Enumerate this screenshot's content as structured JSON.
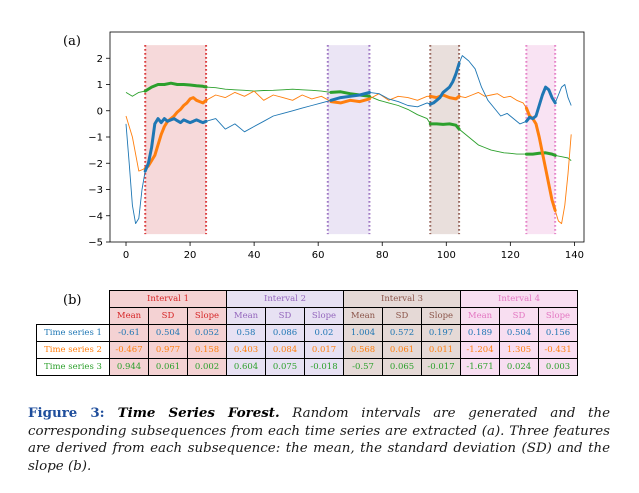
{
  "panel_a_label": "(a)",
  "panel_b_label": "(b)",
  "colors": {
    "series1": "#1f77b4",
    "series2": "#ff7f0e",
    "series3": "#2ca02c",
    "interval1_fill": "#f4d2d3",
    "interval1_line": "#d62728",
    "interval2_fill": "#e7e1f3",
    "interval2_line": "#9467bd",
    "interval3_fill": "#e5d9d6",
    "interval3_line": "#8c564b",
    "interval4_fill": "#f8def1",
    "interval4_line": "#e377c2"
  },
  "chart_data": {
    "type": "line",
    "xlim": [
      -5,
      143
    ],
    "ylim": [
      -5,
      3
    ],
    "x_ticks": [
      0,
      20,
      40,
      60,
      80,
      100,
      120,
      140
    ],
    "y_ticks": [
      2,
      1,
      0,
      -1,
      -2,
      -3,
      -4,
      -5
    ],
    "y_tick_labels": [
      "2",
      "1",
      "0",
      "−1",
      "−2",
      "−3",
      "−4",
      "−5"
    ],
    "intervals": [
      {
        "start": 6,
        "end": 25
      },
      {
        "start": 63,
        "end": 76
      },
      {
        "start": 95,
        "end": 104
      },
      {
        "start": 125,
        "end": 134
      }
    ],
    "series": [
      {
        "x": [
          0,
          1,
          2,
          3,
          4,
          5,
          6,
          7,
          8,
          9,
          10,
          11,
          12,
          13,
          14,
          15,
          16,
          17,
          18,
          19,
          20,
          21,
          22,
          23,
          24,
          25,
          28,
          31,
          34,
          37,
          40,
          43,
          46,
          49,
          52,
          55,
          58,
          61,
          64,
          67,
          70,
          73,
          76,
          79,
          82,
          85,
          88,
          91,
          94,
          95,
          96,
          97,
          98,
          99,
          100,
          101,
          102,
          103,
          104,
          105,
          107,
          109,
          111,
          113,
          115,
          117,
          119,
          121,
          123,
          125,
          126,
          127,
          128,
          129,
          130,
          131,
          132,
          133,
          134,
          135,
          136,
          137,
          138,
          139
        ],
        "y": [
          -0.5,
          -2.0,
          -3.6,
          -4.3,
          -4.1,
          -3.0,
          -2.3,
          -2.0,
          -1.4,
          -0.5,
          -0.3,
          -0.45,
          -0.3,
          -0.4,
          -0.35,
          -0.3,
          -0.38,
          -0.45,
          -0.35,
          -0.4,
          -0.45,
          -0.4,
          -0.35,
          -0.4,
          -0.45,
          -0.4,
          -0.3,
          -0.7,
          -0.5,
          -0.8,
          -0.6,
          -0.4,
          -0.2,
          -0.1,
          0.0,
          0.1,
          0.2,
          0.3,
          0.4,
          0.5,
          0.55,
          0.6,
          0.7,
          0.65,
          0.45,
          0.35,
          0.2,
          0.15,
          0.3,
          0.25,
          0.3,
          0.4,
          0.5,
          0.7,
          0.8,
          0.9,
          1.1,
          1.4,
          1.8,
          2.1,
          1.9,
          1.6,
          0.9,
          0.4,
          0.1,
          -0.2,
          -0.1,
          -0.3,
          -0.5,
          -0.4,
          -0.25,
          -0.3,
          -0.2,
          0.2,
          0.6,
          0.9,
          0.8,
          0.5,
          0.3,
          0.6,
          0.9,
          1.0,
          0.5,
          0.2
        ]
      },
      {
        "x": [
          0,
          2,
          4,
          6,
          7,
          8,
          9,
          10,
          11,
          12,
          13,
          14,
          15,
          16,
          17,
          18,
          19,
          20,
          21,
          22,
          23,
          24,
          25,
          28,
          31,
          34,
          37,
          40,
          43,
          46,
          49,
          52,
          55,
          58,
          61,
          64,
          67,
          70,
          73,
          76,
          79,
          82,
          85,
          88,
          91,
          94,
          95,
          97,
          99,
          101,
          103,
          104,
          106,
          108,
          110,
          112,
          114,
          116,
          118,
          120,
          122,
          124,
          125,
          126,
          127,
          128,
          129,
          130,
          131,
          132,
          133,
          134,
          135,
          136,
          137,
          138,
          139
        ],
        "y": [
          -0.2,
          -1.0,
          -2.3,
          -2.2,
          -2.1,
          -1.9,
          -1.7,
          -1.3,
          -0.9,
          -0.6,
          -0.4,
          -0.3,
          -0.2,
          -0.05,
          0.05,
          0.2,
          0.3,
          0.45,
          0.5,
          0.4,
          0.35,
          0.3,
          0.4,
          0.6,
          0.5,
          0.7,
          0.55,
          0.75,
          0.4,
          0.6,
          0.5,
          0.4,
          0.6,
          0.45,
          0.55,
          0.35,
          0.3,
          0.4,
          0.35,
          0.45,
          0.65,
          0.4,
          0.55,
          0.5,
          0.4,
          0.55,
          0.55,
          0.5,
          0.6,
          0.5,
          0.45,
          0.55,
          0.5,
          0.6,
          0.7,
          0.55,
          0.6,
          0.65,
          0.5,
          0.55,
          0.4,
          0.3,
          0.1,
          -0.2,
          -0.3,
          -0.5,
          -1.0,
          -1.6,
          -2.2,
          -2.8,
          -3.4,
          -3.8,
          -4.2,
          -4.3,
          -3.6,
          -2.4,
          -0.9
        ]
      },
      {
        "x": [
          0,
          2,
          4,
          6,
          8,
          10,
          12,
          14,
          16,
          18,
          20,
          22,
          24,
          25,
          28,
          31,
          34,
          37,
          40,
          43,
          46,
          49,
          52,
          55,
          58,
          61,
          64,
          67,
          70,
          73,
          76,
          79,
          82,
          85,
          88,
          91,
          94,
          95,
          97,
          99,
          101,
          103,
          104,
          106,
          108,
          110,
          112,
          114,
          116,
          118,
          120,
          122,
          124,
          125,
          127,
          129,
          131,
          133,
          134,
          136,
          138,
          139
        ],
        "y": [
          0.7,
          0.55,
          0.7,
          0.75,
          0.9,
          1.0,
          1.0,
          1.05,
          1.0,
          1.0,
          0.98,
          0.95,
          0.93,
          0.9,
          0.88,
          0.82,
          0.8,
          0.78,
          0.75,
          0.77,
          0.78,
          0.8,
          0.82,
          0.8,
          0.78,
          0.75,
          0.7,
          0.72,
          0.65,
          0.6,
          0.55,
          0.4,
          0.3,
          0.2,
          0.05,
          -0.15,
          -0.3,
          -0.5,
          -0.5,
          -0.52,
          -0.5,
          -0.55,
          -0.7,
          -0.9,
          -1.1,
          -1.3,
          -1.4,
          -1.5,
          -1.55,
          -1.6,
          -1.62,
          -1.65,
          -1.65,
          -1.65,
          -1.65,
          -1.62,
          -1.6,
          -1.65,
          -1.7,
          -1.75,
          -1.8,
          -1.9
        ]
      }
    ]
  },
  "table": {
    "interval_headers": [
      "Interval 1",
      "Interval 2",
      "Interval 3",
      "Interval 4"
    ],
    "sub_headers": [
      "Mean",
      "SD",
      "Slope"
    ],
    "rows": [
      {
        "label": "Time series 1",
        "values": [
          "-0.61",
          "0.504",
          "0.052",
          "0.58",
          "0.086",
          "0.02",
          "1.004",
          "0.572",
          "0.197",
          "0.189",
          "0.504",
          "0.156"
        ]
      },
      {
        "label": "Time series 2",
        "values": [
          "-0.467",
          "0.977",
          "0.158",
          "0.403",
          "0.084",
          "0.017",
          "0.568",
          "0.061",
          "0.011",
          "-1.204",
          "1.305",
          "-0.431"
        ]
      },
      {
        "label": "Time series 3",
        "values": [
          "0.944",
          "0.061",
          "0.002",
          "0.604",
          "0.075",
          "-0.018",
          "-0.57",
          "0.065",
          "-0.017",
          "-1.671",
          "0.024",
          "0.003"
        ]
      }
    ]
  },
  "caption": {
    "figure_number": "Figure 3",
    "title": "Time Series Forest",
    "text": "Random intervals are generated and the corresponding subsequences from each time series are extracted (a). Three features are derived from each subsequence: the mean, the standard deviation (SD) and the slope (b)."
  }
}
